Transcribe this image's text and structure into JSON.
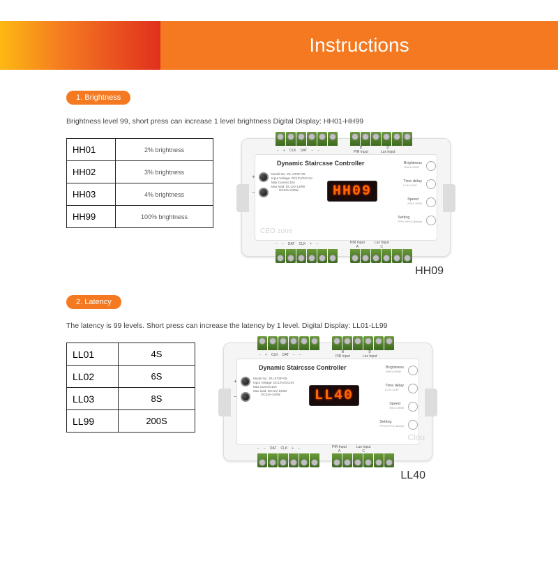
{
  "header": {
    "title": "Instructions"
  },
  "colors": {
    "accent": "#f47920",
    "grad_start": "#fdb813",
    "grad_mid": "#f47920",
    "grad_end": "#e0301e",
    "display_bg": "#1a0a0a",
    "display_fg": "#ff6a00",
    "terminal_green": "#3d6a1f"
  },
  "section1": {
    "badge": "1. Brightness",
    "desc": "Brightness level 99, short press can increase 1 level brightness Digital Display: HH01-HH99",
    "table": [
      {
        "code": "HH01",
        "val": "2% brightness"
      },
      {
        "code": "HH02",
        "val": "3% brightness"
      },
      {
        "code": "HH03",
        "val": "4% brightness"
      },
      {
        "code": "HH99",
        "val": "100% brightness"
      }
    ],
    "device_display": "HH09",
    "device_caption": "HH09",
    "watermark": "CEO zone"
  },
  "section2": {
    "badge": "2. Latency",
    "desc": "The latency is 99 levels. Short press can increase the latency by 1 level. Digital Display: LL01-LL99",
    "table": [
      {
        "code": "LL01",
        "val": "4S"
      },
      {
        "code": "LL02",
        "val": "6S"
      },
      {
        "code": "LL03",
        "val": "8S"
      },
      {
        "code": "LL99",
        "val": "200S"
      }
    ],
    "device_display": "LL40",
    "device_caption": "LL40",
    "watermark": "Clou"
  },
  "device": {
    "title": "Dynamic Staircsse Controller",
    "specs": "Model No.: RL-STSP-09\nInput Voltage: DC12V/DC24V\nMax Current:10A\nMax load: DC12V-120W\n         DC24V-240W",
    "top_labels_a": [
      "−",
      "+",
      "CLK",
      "DAT",
      "−",
      "−"
    ],
    "top_labels_b_line1": [
      "B",
      "D"
    ],
    "top_labels_b_line2": [
      "PIR Input",
      "Lux Input"
    ],
    "bot_labels_a": [
      "−",
      "−",
      "DAT",
      "CLK",
      "+",
      "−"
    ],
    "bot_labels_b_line1": [
      "PIR Input",
      "Lux Input"
    ],
    "bot_labels_b_line2": [
      "A",
      "C"
    ],
    "buttons": [
      {
        "label": "Brightness",
        "sub": "HH01-HH99"
      },
      {
        "label": "Time delay",
        "sub": "LL01-LL99"
      },
      {
        "label": "Speed",
        "sub": "SS01-SS99"
      },
      {
        "label": "Setting",
        "sub": "PP01-PP10 (Mode)"
      }
    ]
  }
}
